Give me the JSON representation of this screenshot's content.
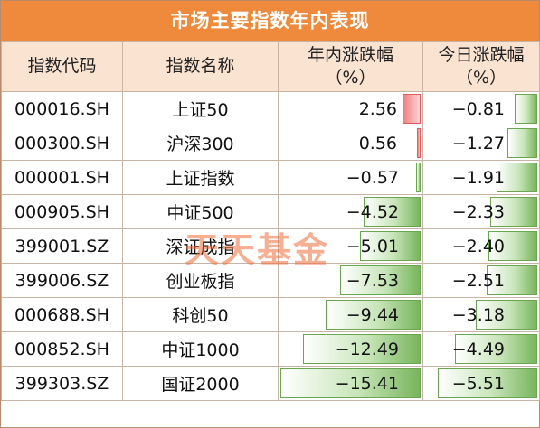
{
  "title": "市场主要指数年内表现",
  "headers": {
    "code": "指数代码",
    "name": "指数名称",
    "ytd_line1": "年内涨跌幅",
    "ytd_line2": "（%）",
    "today_line1": "今日涨跌幅",
    "today_line2": "（%）"
  },
  "watermark": "天天基金",
  "rows": [
    {
      "code": "000016.SH",
      "name": "上证50",
      "ytd": "2.56",
      "today": "−0.81",
      "ytd_v": 2.56,
      "today_v": -0.81
    },
    {
      "code": "000300.SH",
      "name": "沪深300",
      "ytd": "0.56",
      "today": "−1.27",
      "ytd_v": 0.56,
      "today_v": -1.27
    },
    {
      "code": "000001.SH",
      "name": "上证指数",
      "ytd": "−0.57",
      "today": "−1.91",
      "ytd_v": -0.57,
      "today_v": -1.91
    },
    {
      "code": "000905.SH",
      "name": "中证500",
      "ytd": "−4.52",
      "today": "−2.33",
      "ytd_v": -4.52,
      "today_v": -2.33
    },
    {
      "code": "399001.SZ",
      "name": "深证成指",
      "ytd": "−5.01",
      "today": "−2.40",
      "ytd_v": -5.01,
      "today_v": -2.4
    },
    {
      "code": "399006.SZ",
      "name": "创业板指",
      "ytd": "−7.53",
      "today": "−2.51",
      "ytd_v": -7.53,
      "today_v": -2.51
    },
    {
      "code": "000688.SH",
      "name": "科创50",
      "ytd": "−9.44",
      "today": "−3.18",
      "ytd_v": -9.44,
      "today_v": -3.18
    },
    {
      "code": "000852.SH",
      "name": "中证1000",
      "ytd": "−12.49",
      "today": "−4.49",
      "ytd_v": -12.49,
      "today_v": -4.49
    },
    {
      "code": "399303.SZ",
      "name": "国证2000",
      "ytd": "−15.41",
      "today": "−5.51",
      "ytd_v": -15.41,
      "today_v": -5.51
    }
  ],
  "colors": {
    "header_bg": "#ef8a3c",
    "subheader_bg": "#fbe3d2",
    "positive_bar": "#f08080",
    "negative_bar": "#78b55d"
  }
}
